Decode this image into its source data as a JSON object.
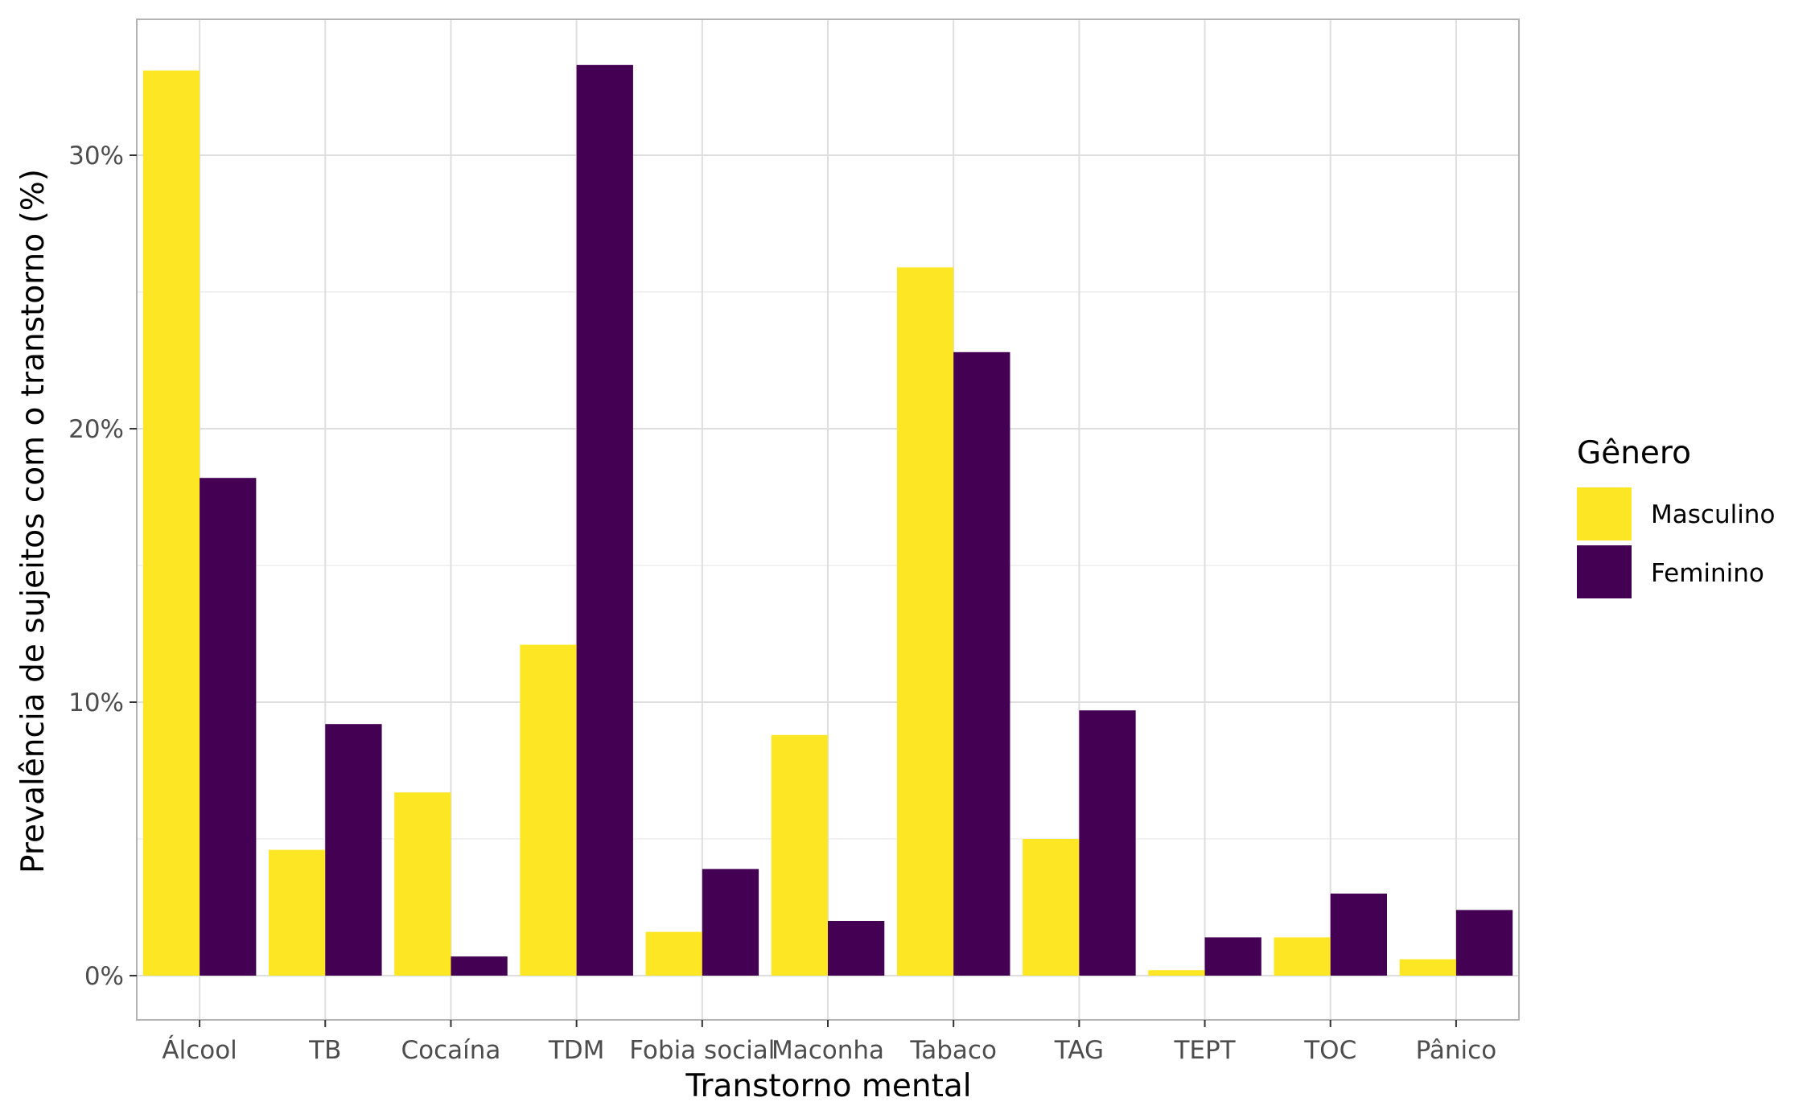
{
  "chart_data": {
    "type": "bar",
    "xlabel": "Transtorno mental",
    "ylabel": "Prevalência de sujeitos com o transtorno (%)",
    "categories": [
      "Álcool",
      "TB",
      "Cocaína",
      "TDM",
      "Fobia social",
      "Maconha",
      "Tabaco",
      "TAG",
      "TEPT",
      "TOC",
      "Pânico"
    ],
    "series": [
      {
        "name": "Masculino",
        "color": "#FDE725",
        "values": [
          33.1,
          4.6,
          6.7,
          12.1,
          1.6,
          8.8,
          25.9,
          5.0,
          0.2,
          1.4,
          0.6
        ]
      },
      {
        "name": "Feminino",
        "color": "#440154",
        "values": [
          18.2,
          9.2,
          0.7,
          33.3,
          3.9,
          2.0,
          22.8,
          9.7,
          1.4,
          3.0,
          2.4
        ]
      }
    ],
    "ylim": [
      -1.6,
      35.0
    ],
    "yticks": [
      0,
      10,
      20,
      30
    ],
    "ytick_labels": [
      "0%",
      "10%",
      "20%",
      "30%"
    ],
    "grid": true,
    "legend": {
      "title": "Gênero",
      "position": "right"
    }
  }
}
